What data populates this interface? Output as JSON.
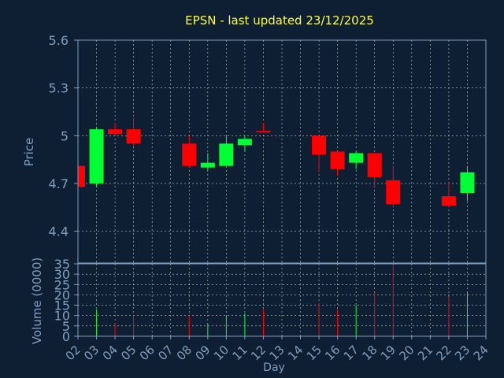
{
  "chart_data": [
    {
      "type": "candlestick",
      "title": "EPSN - last updated 23/12/2025",
      "xlabel": "",
      "ylabel": "Price",
      "ylim": [
        4.2,
        5.6
      ],
      "y_ticks": [
        "4.4",
        "4.7",
        "5",
        "5.3",
        "5.6"
      ],
      "x_tick_labels": [
        "02",
        "03",
        "04",
        "05",
        "06",
        "07",
        "08",
        "09",
        "10",
        "11",
        "12",
        "13",
        "14",
        "15",
        "16",
        "17",
        "18",
        "19",
        "20",
        "21",
        "22",
        "23",
        "24"
      ],
      "grid": true,
      "candles": [
        {
          "day": 2,
          "open": 4.81,
          "high": 4.81,
          "low": 4.68,
          "close": 4.68
        },
        {
          "day": 3,
          "open": 4.7,
          "high": 5.05,
          "low": 4.68,
          "close": 5.04
        },
        {
          "day": 4,
          "open": 5.04,
          "high": 5.08,
          "low": 5.0,
          "close": 5.01
        },
        {
          "day": 5,
          "open": 5.04,
          "high": 5.11,
          "low": 4.93,
          "close": 4.95
        },
        {
          "day": 8,
          "open": 4.95,
          "high": 5.0,
          "low": 4.8,
          "close": 4.81
        },
        {
          "day": 9,
          "open": 4.8,
          "high": 4.89,
          "low": 4.78,
          "close": 4.83
        },
        {
          "day": 10,
          "open": 4.81,
          "high": 5.0,
          "low": 4.81,
          "close": 4.95
        },
        {
          "day": 11,
          "open": 4.94,
          "high": 5.0,
          "low": 4.9,
          "close": 4.98
        },
        {
          "day": 12,
          "open": 5.03,
          "high": 5.08,
          "low": 5.02,
          "close": 5.02
        },
        {
          "day": 15,
          "open": 5.0,
          "high": 5.0,
          "low": 4.77,
          "close": 4.88
        },
        {
          "day": 16,
          "open": 4.9,
          "high": 4.9,
          "low": 4.75,
          "close": 4.79
        },
        {
          "day": 17,
          "open": 4.83,
          "high": 4.9,
          "low": 4.79,
          "close": 4.89
        },
        {
          "day": 18,
          "open": 4.89,
          "high": 4.89,
          "low": 4.67,
          "close": 4.74
        },
        {
          "day": 19,
          "open": 4.72,
          "high": 4.81,
          "low": 4.55,
          "close": 4.57
        },
        {
          "day": 22,
          "open": 4.62,
          "high": 4.71,
          "low": 4.55,
          "close": 4.56
        },
        {
          "day": 23,
          "open": 4.64,
          "high": 4.81,
          "low": 4.59,
          "close": 4.77
        }
      ]
    },
    {
      "type": "bar",
      "title": "",
      "xlabel": "Day",
      "ylabel": "Volume (0000)",
      "ylim": [
        0,
        35
      ],
      "y_ticks": [
        "0",
        "5",
        "10",
        "15",
        "20",
        "25",
        "30",
        "35"
      ],
      "x_tick_labels": [
        "02",
        "03",
        "04",
        "05",
        "06",
        "07",
        "08",
        "09",
        "10",
        "11",
        "12",
        "13",
        "14",
        "15",
        "16",
        "17",
        "18",
        "19",
        "20",
        "21",
        "22",
        "23",
        "24"
      ],
      "grid": true,
      "bars": [
        {
          "day": 2,
          "value": 0,
          "direction": "down"
        },
        {
          "day": 3,
          "value": 13,
          "direction": "up"
        },
        {
          "day": 4,
          "value": 6,
          "direction": "down"
        },
        {
          "day": 5,
          "value": 10,
          "direction": "down"
        },
        {
          "day": 8,
          "value": 10,
          "direction": "down"
        },
        {
          "day": 9,
          "value": 6,
          "direction": "up"
        },
        {
          "day": 10,
          "value": 10,
          "direction": "up"
        },
        {
          "day": 11,
          "value": 11,
          "direction": "up"
        },
        {
          "day": 12,
          "value": 13,
          "direction": "down"
        },
        {
          "day": 15,
          "value": 16,
          "direction": "down"
        },
        {
          "day": 16,
          "value": 13,
          "direction": "down"
        },
        {
          "day": 17,
          "value": 15,
          "direction": "up"
        },
        {
          "day": 18,
          "value": 21,
          "direction": "down"
        },
        {
          "day": 19,
          "value": 34,
          "direction": "down"
        },
        {
          "day": 22,
          "value": 19,
          "direction": "down"
        },
        {
          "day": 23,
          "value": 21,
          "direction": "up"
        }
      ]
    }
  ],
  "colors": {
    "background": "#0f1f33",
    "title": "#ffff33",
    "label": "#7f9fc0",
    "axis": "#7f9fc0",
    "grid": "#c8c8c8",
    "up": "#00ff33",
    "down": "#ff0000"
  }
}
